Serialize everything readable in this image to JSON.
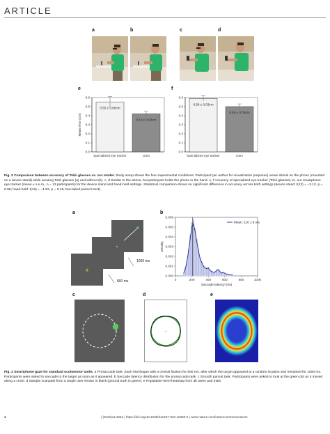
{
  "header": {
    "word": "ARTICLE"
  },
  "fig2": {
    "letters": [
      "a",
      "b",
      "c",
      "d",
      "e",
      "f"
    ],
    "chart_data": [
      {
        "type": "bar",
        "categories": [
          "Specialized eye tracker",
          "Ours"
        ],
        "values": [
          0.55,
          0.42
        ],
        "errors": [
          0.06,
          0.03
        ],
        "bar_labels": [
          "0.55 ± 0.06cm",
          "0.42 ± 0.03cm"
        ],
        "ylabel": "Mean error (cm)",
        "ylim": [
          0.0,
          0.6
        ],
        "yticks": [
          "0.0",
          "0.1",
          "0.2",
          "0.3",
          "0.4",
          "0.5",
          "0.6"
        ]
      },
      {
        "type": "bar",
        "categories": [
          "Specialized eye tracker",
          "Ours"
        ],
        "values": [
          0.59,
          0.5
        ],
        "errors": [
          0.03,
          0.03
        ],
        "bar_labels": [
          "0.59 ± 0.03cm",
          "0.50 ± 0.03cm"
        ],
        "ylabel": "",
        "ylim": [
          0.0,
          0.6
        ],
        "yticks": [
          "0.0",
          "0.1",
          "0.2",
          "0.3",
          "0.4",
          "0.5",
          "0.6"
        ]
      }
    ],
    "caption_title": "Fig. 2 Comparison between accuracy of Tobii glasses vs. our model.",
    "caption_body": " Study setup shows the four experimental conditions: Participant (an author for visualization purposes) views stimuli on the phone (mounted on a device stand) while wearing Tobii glasses (a) and without (b). c, d Similar to the above, but participant holds the phone in the hand. e, f Accuracy of specialized eye tracker (Tobii glasses) vs. our smartphone eye tracker (mean ± s.e.m., n = 13 participants) for the device stand and hand-held settings. Statistical comparison shows no significant difference in accuracy across both settings (device stand: t(12) = −2.12, p = 0.06; hand-held: t(12) = −1.53, p = 0.15; two-tailed paired t-test)."
  },
  "fig3": {
    "letters": [
      "a",
      "b",
      "c",
      "d",
      "e"
    ],
    "timing": [
      "1000 ms",
      "800 ms"
    ],
    "chart_data": {
      "type": "bar",
      "xlabel": "Saccade latency (ms)",
      "ylabel": "Density",
      "legend": "Mean: 210 ± 6 ms",
      "xticks": [
        "0",
        "200",
        "400",
        "600",
        "800",
        "1000"
      ],
      "yticks": [
        "0.000",
        "0.001",
        "0.002",
        "0.003",
        "0.004",
        "0.005",
        "0.006"
      ],
      "xlim": [
        0,
        1000
      ],
      "ylim": [
        0,
        0.006
      ],
      "bins_x": [
        100,
        120,
        140,
        160,
        180,
        200,
        220,
        240,
        260,
        280,
        300,
        320,
        340,
        360,
        380,
        400,
        420,
        440,
        460,
        480,
        500,
        520,
        540,
        560,
        580,
        600,
        620,
        640,
        660,
        680,
        700
      ],
      "density": [
        0.0003,
        0.0008,
        0.0016,
        0.0028,
        0.0042,
        0.0055,
        0.0058,
        0.0049,
        0.0038,
        0.0028,
        0.0019,
        0.0015,
        0.0011,
        0.0009,
        0.0008,
        0.0009,
        0.0006,
        0.0005,
        0.0004,
        0.0004,
        0.0006,
        0.0007,
        0.0005,
        0.0003,
        0.0004,
        0.0003,
        0.0002,
        0.0002,
        0.0001,
        0.0001,
        0.0001
      ],
      "mean_ms": 210
    },
    "caption_title": "Fig. 3 Smartphone gaze for standard oculomotor tasks.",
    "caption_body": " a Prosaccade task. Each trial began with a central fixation for 800 ms, after which the target appeared at a random location and remained for 1000 ms. Participants were asked to saccade to the target as soon as it appeared. b Saccade latency distribution for the prosaccade task. c Smooth pursuit task. Participants were asked to look at the green dot as it moved along a circle. d Sample scanpath from a single user shown in black (ground truth in green). e Population-level heatmap from all users and trials."
  },
  "footer": {
    "page": "4",
    "citation": "| (2020)11:4553 | https://doi.org/10.1038/s41467-020-18360-5 | www.nature.com/naturecommunications"
  }
}
